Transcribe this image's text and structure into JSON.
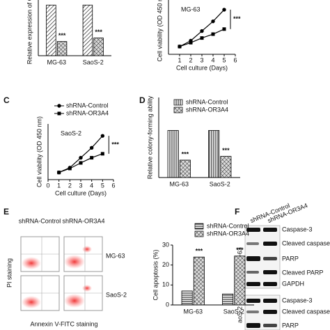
{
  "chart_data": [
    {
      "type": "bar",
      "y_label": "Relative expression of OR",
      "categories": [
        "MG-63",
        "SaoS-2"
      ],
      "series": [
        {
          "name": "shRNA-Control",
          "color": "#ffffff",
          "hatch": "diagonal",
          "values": [
            1.0,
            1.0
          ]
        },
        {
          "name": "shRNA-OR3A4",
          "color": "#ffffff",
          "hatch": "cross",
          "values": [
            0.28,
            0.35
          ]
        }
      ],
      "ylim": [
        0,
        1.1
      ],
      "legend": false,
      "annotations": [
        "***",
        "***"
      ]
    },
    {
      "type": "line",
      "title": "MG-63",
      "x_label": "Cell culture (Days)",
      "y_label": "Cell viability (OD 450 nm",
      "x": [
        1,
        2,
        3,
        4,
        5
      ],
      "series": [
        {
          "name": "shRNA-Control",
          "color": "#000000",
          "marker": "circle",
          "values": [
            0.2,
            0.35,
            0.6,
            0.85,
            1.15
          ]
        },
        {
          "name": "shRNA-OR3A4",
          "color": "#000000",
          "marker": "square",
          "values": [
            0.2,
            0.3,
            0.42,
            0.52,
            0.65
          ]
        }
      ],
      "xlim": [
        0,
        6
      ],
      "xticks": [
        1,
        2,
        3,
        4,
        5,
        6
      ],
      "ylim": [
        0,
        1.4
      ],
      "legend": false,
      "annotations": [
        "***"
      ]
    },
    {
      "type": "line",
      "title": "SaoS-2",
      "x_label": "Cell culture (Days)",
      "y_label": "Cell viability (OD 450 nm)",
      "x": [
        1,
        2,
        3,
        4,
        5
      ],
      "series": [
        {
          "name": "shRNA-Control",
          "color": "#000000",
          "marker": "circle",
          "values": [
            0.18,
            0.3,
            0.55,
            0.8,
            1.1
          ]
        },
        {
          "name": "shRNA-OR3A4",
          "color": "#000000",
          "marker": "square",
          "values": [
            0.18,
            0.28,
            0.42,
            0.55,
            0.65
          ]
        }
      ],
      "xlim": [
        0,
        6
      ],
      "xticks": [
        0,
        1,
        2,
        3,
        4,
        5,
        6
      ],
      "ylim": [
        0,
        1.4
      ],
      "legend": true,
      "annotations": [
        "***"
      ]
    },
    {
      "type": "bar",
      "y_label": "Relative colony-forming ability",
      "categories": [
        "MG-63",
        "SaoS-2"
      ],
      "series": [
        {
          "name": "shRNA-Control",
          "color": "#ffffff",
          "hatch": "vertical",
          "values": [
            1.0,
            1.0
          ]
        },
        {
          "name": "shRNA-OR3A4",
          "color": "#ffffff",
          "hatch": "cross",
          "values": [
            0.37,
            0.45
          ]
        }
      ],
      "ylim": [
        0,
        1.7
      ],
      "legend": true,
      "annotations": [
        "***",
        "***"
      ]
    },
    {
      "type": "bar",
      "y_label": "Cell apoptosis (%)",
      "categories": [
        "MG-63",
        "SaoS-2"
      ],
      "series": [
        {
          "name": "shRNA-Control",
          "color": "#ffffff",
          "hatch": "horizontal",
          "values": [
            7,
            5.5
          ]
        },
        {
          "name": "shRNA-OR3A4",
          "color": "#ffffff",
          "hatch": "cross",
          "values": [
            24,
            24.5
          ]
        }
      ],
      "ylim": [
        0,
        30
      ],
      "yticks": [
        0,
        10,
        20,
        30
      ],
      "legend": true,
      "annotations": [
        "***",
        "***"
      ]
    }
  ],
  "figure": {
    "panel_letters": [
      "C",
      "D",
      "E",
      "F"
    ],
    "flow": {
      "columns": [
        "shRNA-Control",
        "shRNA-OR3A4"
      ],
      "rows": [
        "MG-63",
        "SaoS-2"
      ],
      "y_label": "PI staining",
      "x_label": "Annexin V-FITC staining"
    },
    "blot": {
      "columns": [
        "shRNA-Control",
        "shRNA-OR3A4"
      ],
      "groups": [
        {
          "name": "MG-63",
          "bands": [
            "Caspase-3",
            "Cleaved caspase-3",
            "PARP",
            "Cleaved PARP",
            "GAPDH"
          ]
        },
        {
          "name": "aoS-2",
          "bands": [
            "Caspase-3",
            "Cleaved caspase-3",
            "PARP"
          ]
        }
      ]
    }
  }
}
